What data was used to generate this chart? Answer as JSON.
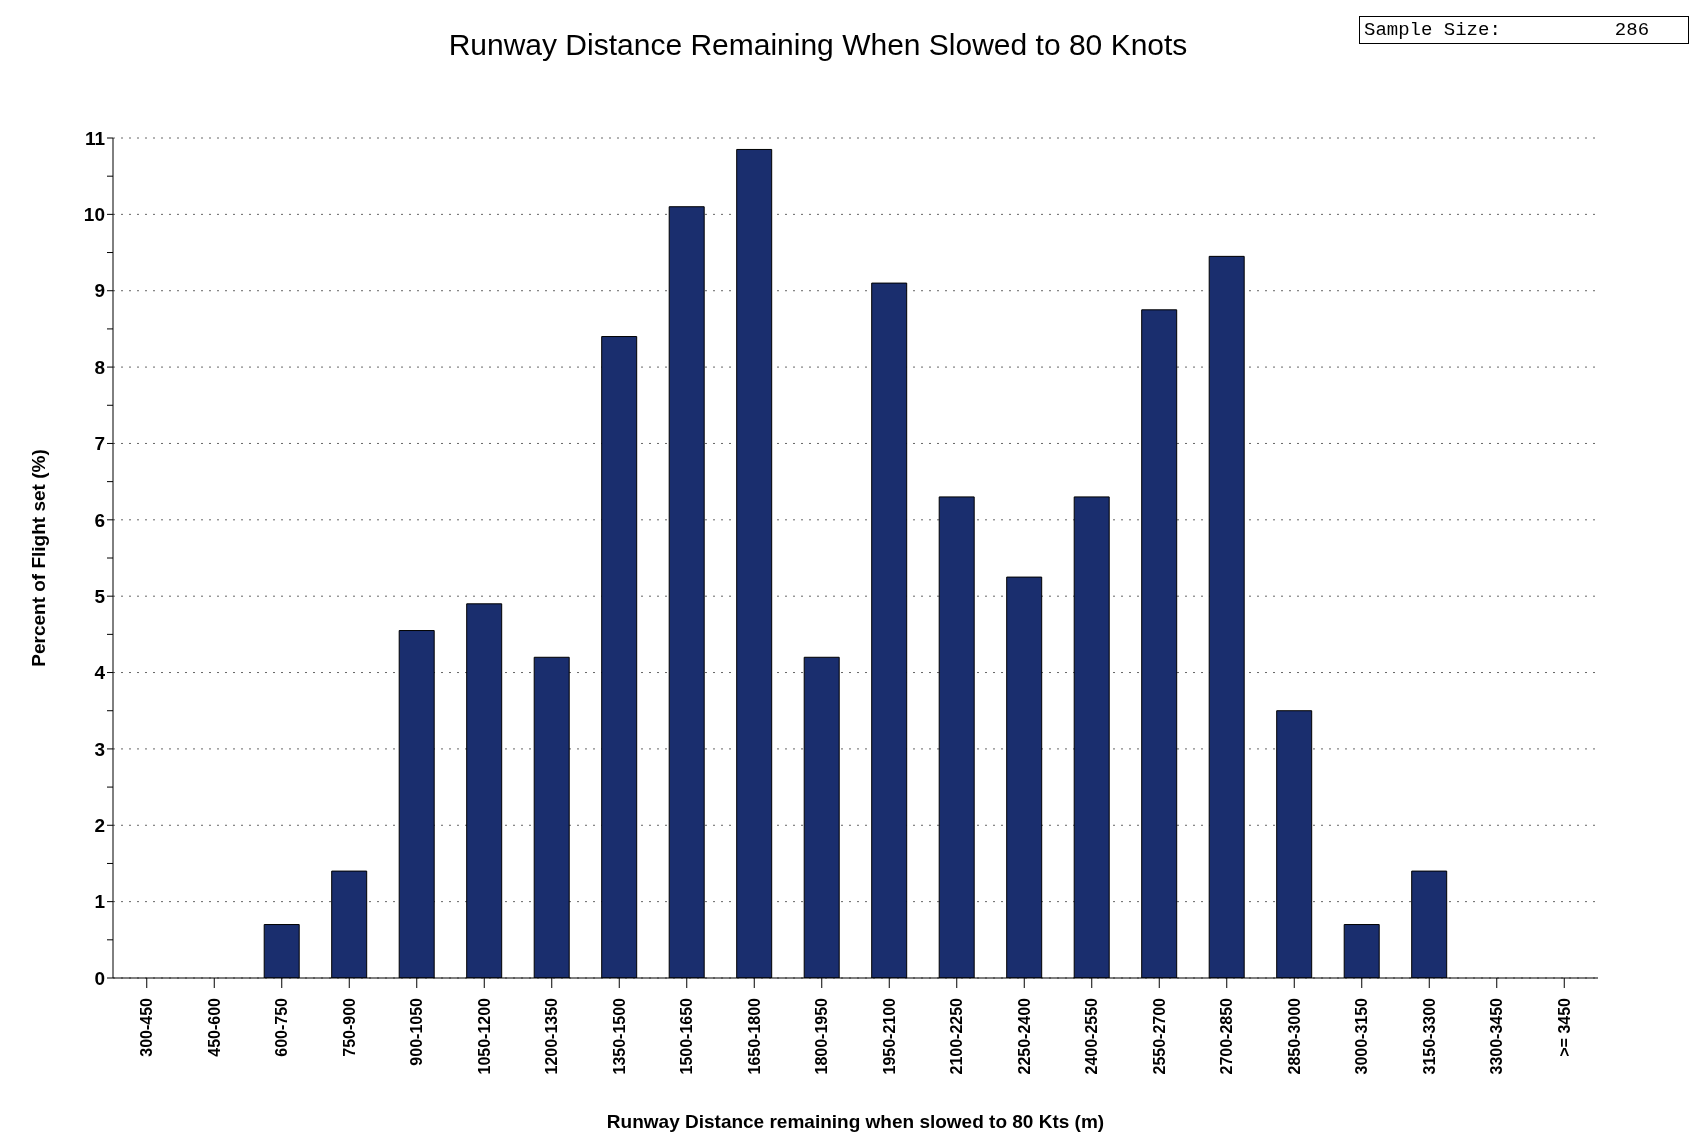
{
  "chart_data": {
    "type": "bar",
    "title": "Runway Distance Remaining When Slowed to 80 Knots",
    "xlabel": "Runway Distance remaining when slowed to 80 Kts (m)",
    "ylabel": "Percent of Flight set (%)",
    "annotations": [
      "Sample Size:          286"
    ],
    "categories": [
      "300-450",
      "450-600",
      "600-750",
      "750-900",
      "900-1050",
      "1050-1200",
      "1200-1350",
      "1350-1500",
      "1500-1650",
      "1650-1800",
      "1800-1950",
      "1950-2100",
      "2100-2250",
      "2250-2400",
      "2400-2550",
      "2550-2700",
      "2700-2850",
      "2850-3000",
      "3000-3150",
      "3150-3300",
      "3300-3450",
      ">= 3450"
    ],
    "values": [
      0,
      0,
      0.7,
      1.4,
      4.55,
      4.9,
      4.2,
      8.4,
      10.1,
      10.85,
      4.2,
      9.1,
      6.3,
      5.25,
      6.3,
      8.75,
      9.45,
      3.5,
      0.7,
      1.4,
      0,
      0
    ],
    "color": "#1a2e6e",
    "ylim": [
      0,
      11
    ],
    "yticks": [
      0,
      {
        "value": 0.5,
        "label": null
      },
      1,
      {
        "value": 1.5,
        "label": null
      },
      2,
      {
        "value": 2.5,
        "label": null
      },
      3,
      {
        "value": 3.5,
        "label": null
      },
      4,
      {
        "value": 4.5,
        "label": null
      },
      5,
      {
        "value": 5.5,
        "label": null
      },
      6,
      {
        "value": 6.5,
        "label": null
      },
      7,
      {
        "value": 7.5,
        "label": null
      },
      8,
      {
        "value": 8.5,
        "label": null
      },
      9,
      {
        "value": 9.5,
        "label": null
      },
      10,
      {
        "value": 10.5,
        "label": null
      },
      11
    ],
    "grid": "y",
    "legend": false
  }
}
